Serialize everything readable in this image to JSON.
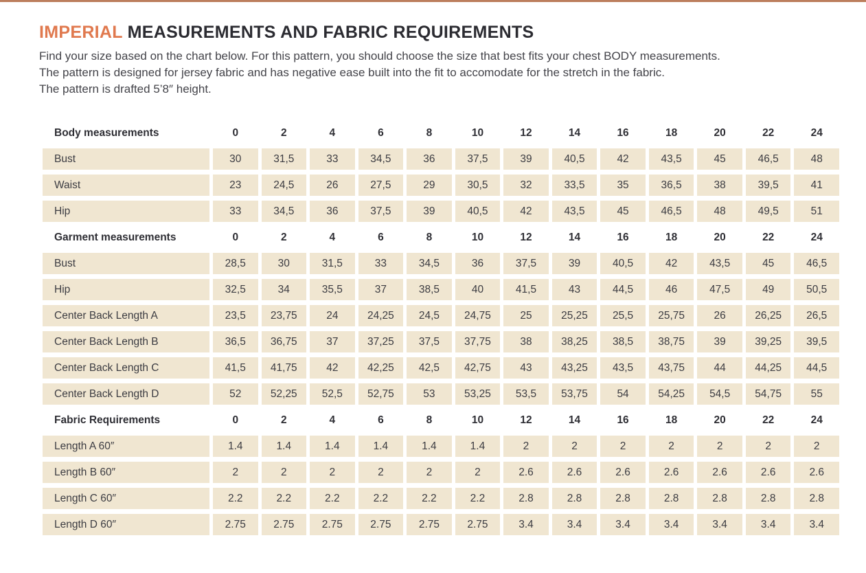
{
  "colors": {
    "accent": "#e0794e",
    "top_bar": "#bc7e5d",
    "cell_background": "#f0e6d1",
    "text": "#35353b"
  },
  "header": {
    "title_accent": "IMPERIAL",
    "title_rest": " MEASUREMENTS AND FABRIC REQUIREMENTS"
  },
  "intro": [
    "Find your size based on the chart below. For this pattern, you should choose the size that best fits your chest BODY measurements.",
    "The pattern is designed for jersey fabric and has negative ease built into the fit to accomodate for the stretch in the fabric.",
    "The pattern is drafted 5’8″ height."
  ],
  "table": {
    "sizes": [
      "0",
      "2",
      "4",
      "6",
      "8",
      "10",
      "12",
      "14",
      "16",
      "18",
      "20",
      "22",
      "24"
    ],
    "sections": [
      {
        "header": "Body measurements",
        "rows": [
          {
            "label": "Bust",
            "values": [
              "30",
              "31,5",
              "33",
              "34,5",
              "36",
              "37,5",
              "39",
              "40,5",
              "42",
              "43,5",
              "45",
              "46,5",
              "48"
            ]
          },
          {
            "label": "Waist",
            "values": [
              "23",
              "24,5",
              "26",
              "27,5",
              "29",
              "30,5",
              "32",
              "33,5",
              "35",
              "36,5",
              "38",
              "39,5",
              "41"
            ]
          },
          {
            "label": "Hip",
            "values": [
              "33",
              "34,5",
              "36",
              "37,5",
              "39",
              "40,5",
              "42",
              "43,5",
              "45",
              "46,5",
              "48",
              "49,5",
              "51"
            ]
          }
        ]
      },
      {
        "header": "Garment measurements",
        "rows": [
          {
            "label": "Bust",
            "values": [
              "28,5",
              "30",
              "31,5",
              "33",
              "34,5",
              "36",
              "37,5",
              "39",
              "40,5",
              "42",
              "43,5",
              "45",
              "46,5"
            ]
          },
          {
            "label": "Hip",
            "values": [
              "32,5",
              "34",
              "35,5",
              "37",
              "38,5",
              "40",
              "41,5",
              "43",
              "44,5",
              "46",
              "47,5",
              "49",
              "50,5"
            ]
          },
          {
            "label": "Center Back Length A",
            "values": [
              "23,5",
              "23,75",
              "24",
              "24,25",
              "24,5",
              "24,75",
              "25",
              "25,25",
              "25,5",
              "25,75",
              "26",
              "26,25",
              "26,5"
            ]
          },
          {
            "label": "Center Back Length B",
            "values": [
              "36,5",
              "36,75",
              "37",
              "37,25",
              "37,5",
              "37,75",
              "38",
              "38,25",
              "38,5",
              "38,75",
              "39",
              "39,25",
              "39,5"
            ]
          },
          {
            "label": "Center Back Length C",
            "values": [
              "41,5",
              "41,75",
              "42",
              "42,25",
              "42,5",
              "42,75",
              "43",
              "43,25",
              "43,5",
              "43,75",
              "44",
              "44,25",
              "44,5"
            ]
          },
          {
            "label": "Center Back Length D",
            "values": [
              "52",
              "52,25",
              "52,5",
              "52,75",
              "53",
              "53,25",
              "53,5",
              "53,75",
              "54",
              "54,25",
              "54,5",
              "54,75",
              "55"
            ]
          }
        ]
      },
      {
        "header": "Fabric Requirements",
        "rows": [
          {
            "label": "Length A 60″",
            "values": [
              "1.4",
              "1.4",
              "1.4",
              "1.4",
              "1.4",
              "1.4",
              "2",
              "2",
              "2",
              "2",
              "2",
              "2",
              "2"
            ]
          },
          {
            "label": "Length B 60″",
            "values": [
              "2",
              "2",
              "2",
              "2",
              "2",
              "2",
              "2.6",
              "2.6",
              "2.6",
              "2.6",
              "2.6",
              "2.6",
              "2.6"
            ]
          },
          {
            "label": "Length C 60″",
            "values": [
              "2.2",
              "2.2",
              "2.2",
              "2.2",
              "2.2",
              "2.2",
              "2.8",
              "2.8",
              "2.8",
              "2.8",
              "2.8",
              "2.8",
              "2.8"
            ]
          },
          {
            "label": "Length D 60″",
            "values": [
              "2.75",
              "2.75",
              "2.75",
              "2.75",
              "2.75",
              "2.75",
              "3.4",
              "3.4",
              "3.4",
              "3.4",
              "3.4",
              "3.4",
              "3.4"
            ]
          }
        ]
      }
    ]
  }
}
